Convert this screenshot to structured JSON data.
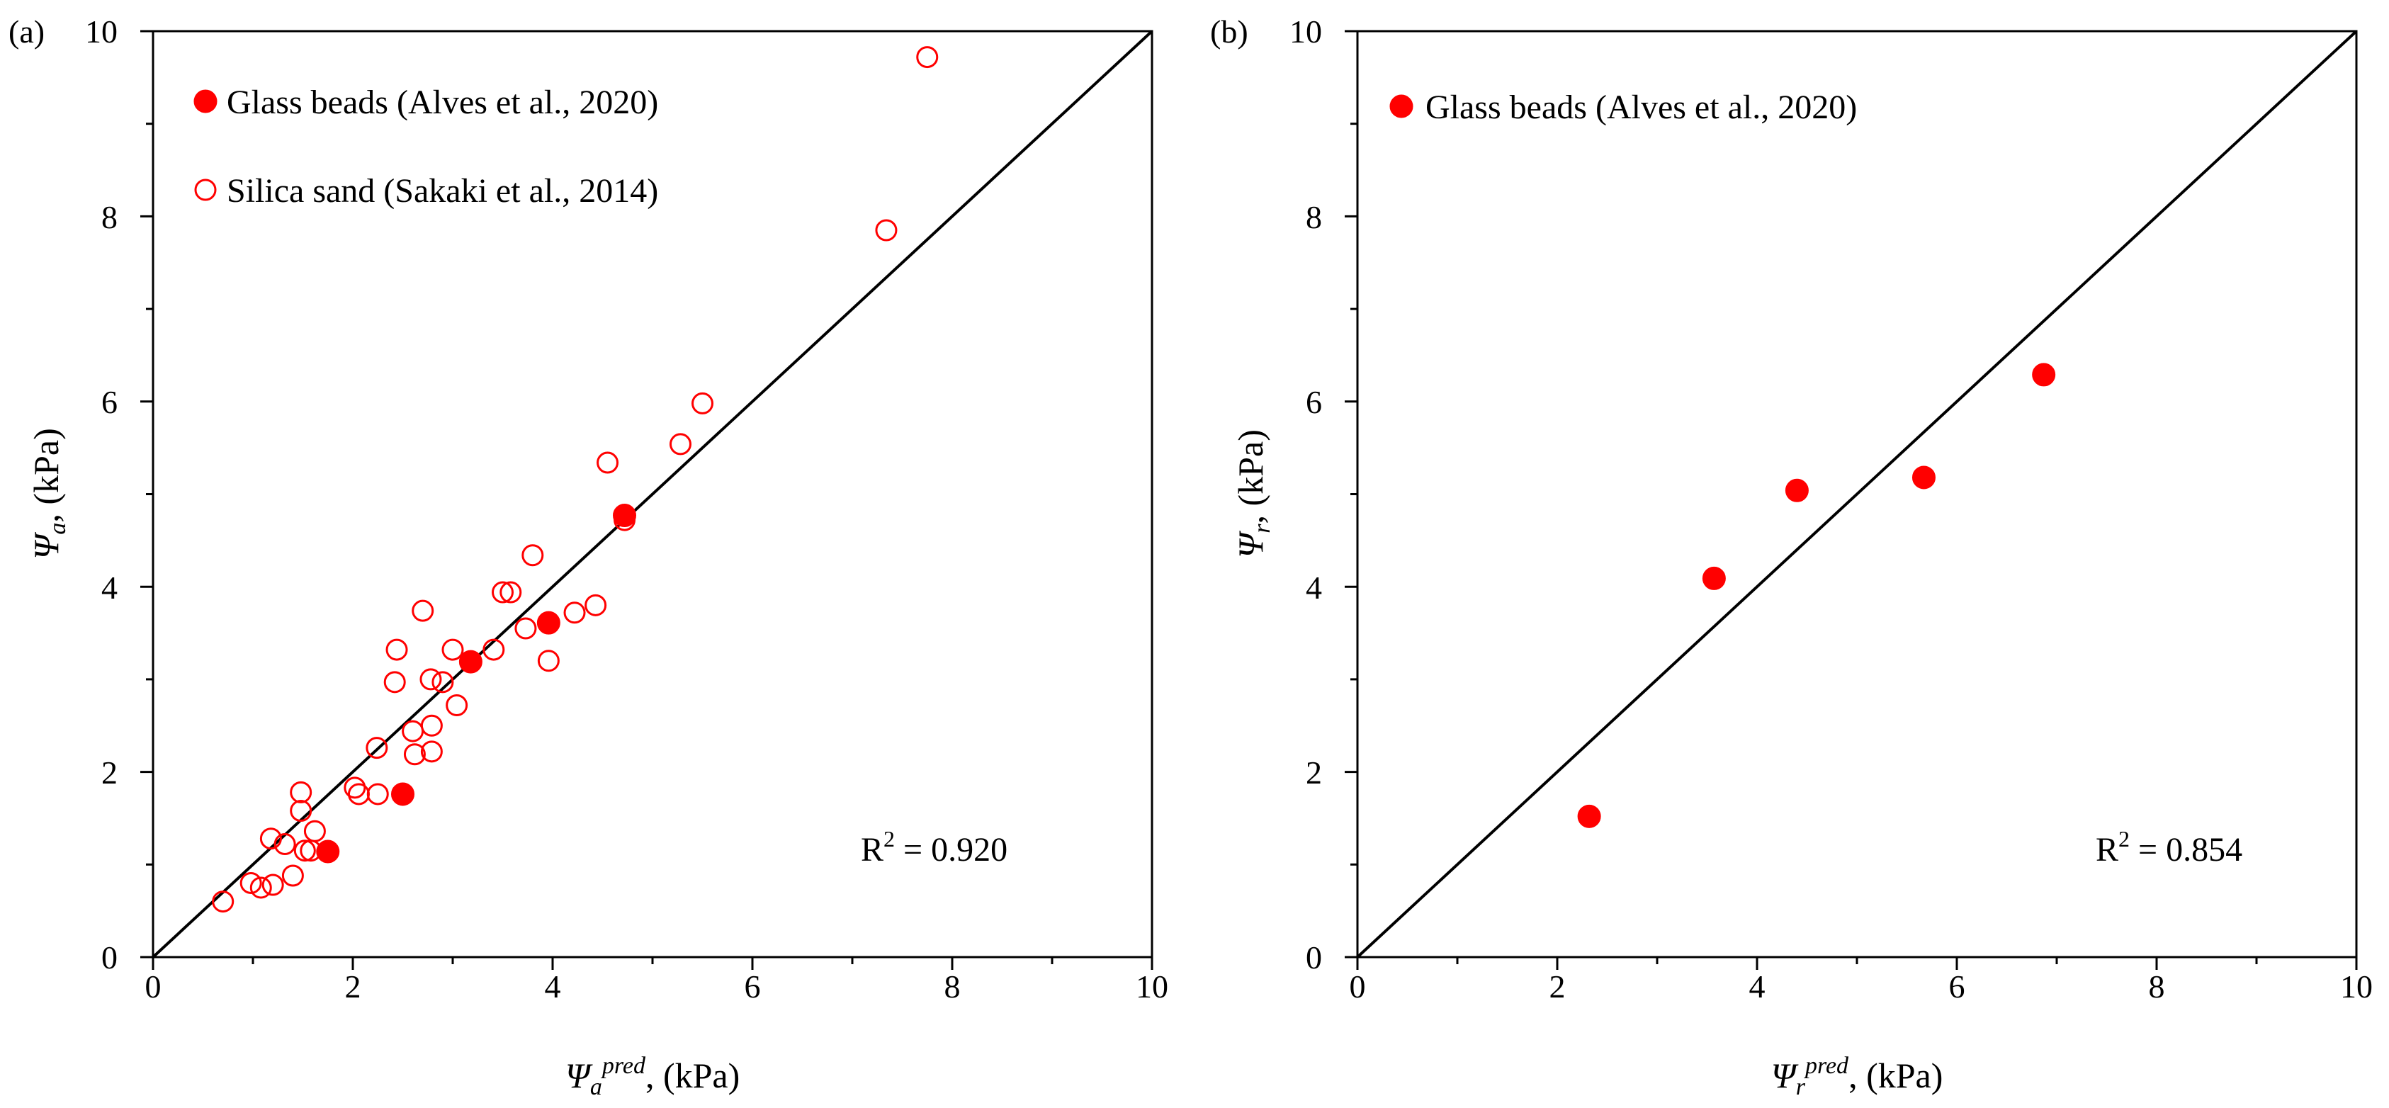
{
  "chart_data": [
    {
      "type": "scatter",
      "panel_label": "(a)",
      "xlabel": {
        "symbol": "Ψ",
        "sub": "a",
        "sup": "pred",
        "unit": ", (kPa)"
      },
      "ylabel": {
        "symbol": "Ψ",
        "sub": "a",
        "unit": ", (kPa)"
      },
      "xlim": [
        0,
        10
      ],
      "ylim": [
        0,
        10
      ],
      "xticks": [
        "0",
        "2",
        "4",
        "6",
        "8",
        "10"
      ],
      "yticks": [
        "0",
        "2",
        "4",
        "6",
        "8",
        "10"
      ],
      "reference_line": "1:1",
      "legend_position": "top-left",
      "r2": {
        "prefix": "R",
        "sup": "2",
        "value": " = 0.920"
      },
      "series": [
        {
          "name": "Glass beads (Alves et al., 2020)",
          "marker": "filled-circle",
          "color": "#ff0000",
          "points": [
            [
              1.75,
              1.14
            ],
            [
              2.5,
              1.76
            ],
            [
              3.18,
              3.19
            ],
            [
              3.96,
              3.61
            ],
            [
              4.72,
              4.77
            ]
          ]
        },
        {
          "name": "Silica sand (Sakaki et al., 2014)",
          "marker": "open-circle",
          "color": "#ff0000",
          "points": [
            [
              0.7,
              0.6
            ],
            [
              0.98,
              0.8
            ],
            [
              1.08,
              0.75
            ],
            [
              1.2,
              0.78
            ],
            [
              1.32,
              1.22
            ],
            [
              1.4,
              0.88
            ],
            [
              1.18,
              1.28
            ],
            [
              1.52,
              1.15
            ],
            [
              1.58,
              1.15
            ],
            [
              1.62,
              1.36
            ],
            [
              1.48,
              1.58
            ],
            [
              1.48,
              1.78
            ],
            [
              2.02,
              1.83
            ],
            [
              2.06,
              1.76
            ],
            [
              2.25,
              1.76
            ],
            [
              2.24,
              2.26
            ],
            [
              2.42,
              2.97
            ],
            [
              2.44,
              3.32
            ],
            [
              2.6,
              2.44
            ],
            [
              2.62,
              2.19
            ],
            [
              2.7,
              3.74
            ],
            [
              2.78,
              3.0
            ],
            [
              2.79,
              2.5
            ],
            [
              2.79,
              2.22
            ],
            [
              2.9,
              2.97
            ],
            [
              3.0,
              3.32
            ],
            [
              3.04,
              2.72
            ],
            [
              3.41,
              3.32
            ],
            [
              3.5,
              3.94
            ],
            [
              3.58,
              3.94
            ],
            [
              3.73,
              3.55
            ],
            [
              3.8,
              4.34
            ],
            [
              3.96,
              3.2
            ],
            [
              4.22,
              3.72
            ],
            [
              4.43,
              3.8
            ],
            [
              4.55,
              5.34
            ],
            [
              4.72,
              4.72
            ],
            [
              5.28,
              5.54
            ],
            [
              5.5,
              5.98
            ],
            [
              7.34,
              7.85
            ],
            [
              7.75,
              9.72
            ]
          ]
        }
      ]
    },
    {
      "type": "scatter",
      "panel_label": "(b)",
      "xlabel": {
        "symbol": "Ψ",
        "sub": "r",
        "sup": "pred",
        "unit": ", (kPa)"
      },
      "ylabel": {
        "symbol": "Ψ",
        "sub": "r",
        "unit": ", (kPa)"
      },
      "xlim": [
        0,
        10
      ],
      "ylim": [
        0,
        10
      ],
      "xticks": [
        "0",
        "2",
        "4",
        "6",
        "8",
        "10"
      ],
      "yticks": [
        "0",
        "2",
        "4",
        "6",
        "8",
        "10"
      ],
      "reference_line": "1:1",
      "legend_position": "top-left",
      "r2": {
        "prefix": "R",
        "sup": "2",
        "value": " = 0.854"
      },
      "series": [
        {
          "name": "Glass beads (Alves et al., 2020)",
          "marker": "filled-circle",
          "color": "#ff0000",
          "points": [
            [
              2.32,
              1.52
            ],
            [
              3.57,
              4.09
            ],
            [
              4.4,
              5.04
            ],
            [
              5.67,
              5.18
            ],
            [
              6.87,
              6.29
            ]
          ]
        }
      ]
    }
  ]
}
